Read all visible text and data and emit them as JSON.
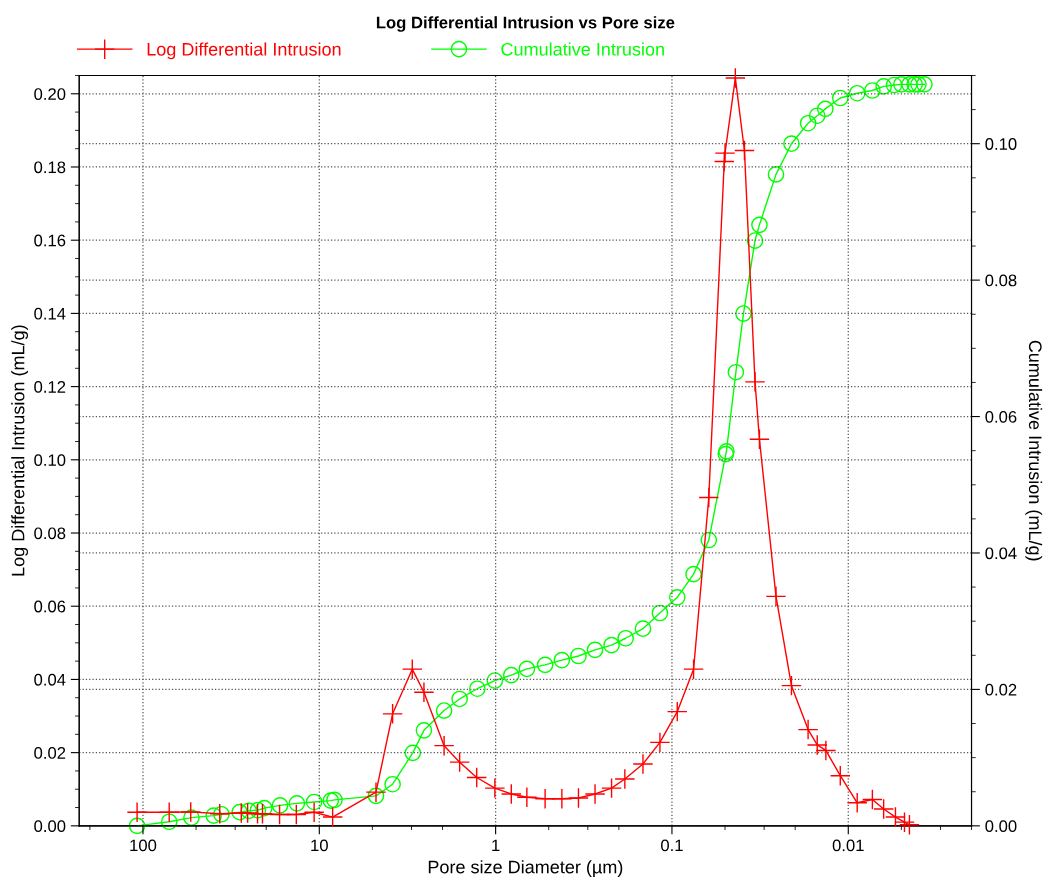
{
  "chart_data": {
    "type": "line",
    "title": "Log Differential Intrusion vs Pore size",
    "xlabel": "Pore size Diameter (µm)",
    "ylabel": "Log Differential Intrusion (mL/g)",
    "y2label": "Cumulative Intrusion (mL/g)",
    "log": "x",
    "grid": true,
    "legend": "top left",
    "line_style": "solid",
    "xlim": [
      230,
      0.002
    ],
    "xticks": [
      100,
      10,
      1,
      0.1,
      0.01
    ],
    "ylim": [
      0,
      0.205
    ],
    "yticks": [
      {
        "value": 0,
        "label": "0.00"
      },
      {
        "value": 0.02,
        "label": "0.02"
      },
      {
        "value": 0.04,
        "label": "0.04"
      },
      {
        "value": 0.06,
        "label": "0.06"
      },
      {
        "value": 0.08,
        "label": "0.08"
      },
      {
        "value": 0.1,
        "label": "0.10"
      },
      {
        "value": 0.12,
        "label": "0.12"
      },
      {
        "value": 0.14,
        "label": "0.14"
      },
      {
        "value": 0.16,
        "label": "0.16"
      },
      {
        "value": 0.18,
        "label": "0.18"
      },
      {
        "value": 0.2,
        "label": "0.20"
      }
    ],
    "y2lim": [
      0,
      0.11
    ],
    "y2ticks": [
      {
        "value": 0,
        "label": "0.00"
      },
      {
        "value": 0.02,
        "label": "0.02"
      },
      {
        "value": 0.04,
        "label": "0.04"
      },
      {
        "value": 0.06,
        "label": "0.06"
      },
      {
        "value": 0.08,
        "label": "0.08"
      },
      {
        "value": 0.1,
        "label": "0.10"
      }
    ],
    "series": [
      {
        "name": "Log Differential Intrusion",
        "color": "#ff0000",
        "marker": "cross",
        "x": [
          108,
          71,
          53.6,
          36.7,
          27.7,
          25.5,
          22.4,
          21.0,
          16.8,
          13.5,
          10.7,
          8.4,
          4.77,
          3.84,
          2.97,
          2.55,
          1.96,
          1.6,
          1.28,
          1.01,
          0.815,
          0.665,
          0.524,
          0.421,
          0.339,
          0.273,
          0.22,
          0.185,
          0.146,
          0.117,
          0.0933,
          0.0754,
          0.0618,
          0.0505,
          0.05,
          0.0437,
          0.0388,
          0.0338,
          0.0319,
          0.0257,
          0.021,
          0.0169,
          0.015,
          0.0134,
          0.0111,
          0.0089,
          0.0073,
          0.0063,
          0.0054,
          0.0048,
          0.0045
        ],
        "values": [
          0.0037,
          0.0037,
          0.0038,
          0.0033,
          0.0035,
          0.0035,
          0.0033,
          0.0033,
          0.0031,
          0.0031,
          0.0037,
          0.0024,
          0.0092,
          0.0306,
          0.0428,
          0.0365,
          0.0219,
          0.0174,
          0.0132,
          0.0103,
          0.0087,
          0.0078,
          0.0074,
          0.0074,
          0.0076,
          0.0087,
          0.0103,
          0.0128,
          0.0169,
          0.0228,
          0.0312,
          0.0428,
          0.0897,
          0.1815,
          0.1838,
          0.2043,
          0.1845,
          0.1213,
          0.1056,
          0.0627,
          0.0383,
          0.0263,
          0.0221,
          0.0206,
          0.0137,
          0.0063,
          0.0072,
          0.0046,
          0.0024,
          0.001,
          0.0003
        ]
      },
      {
        "name": "Cumulative Intrusion",
        "color": "#00ff00",
        "marker": "circle",
        "axis": "y2",
        "x": [
          108,
          71,
          53.1,
          39.7,
          35.9,
          28.3,
          25.1,
          22.3,
          20.5,
          16.7,
          13.4,
          10.7,
          8.6,
          8.2,
          4.77,
          3.84,
          2.95,
          2.55,
          1.96,
          1.6,
          1.27,
          1.01,
          0.815,
          0.665,
          0.524,
          0.421,
          0.339,
          0.273,
          0.22,
          0.183,
          0.146,
          0.117,
          0.0933,
          0.0754,
          0.0618,
          0.0495,
          0.0491,
          0.0434,
          0.0393,
          0.0338,
          0.0319,
          0.0257,
          0.021,
          0.0169,
          0.015,
          0.0135,
          0.0111,
          0.0089,
          0.0073,
          0.0063,
          0.0055,
          0.005,
          0.0045,
          0.0042,
          0.004,
          0.0037
        ],
        "values": [
          0,
          0.0006,
          0.0012,
          0.0015,
          0.0017,
          0.002,
          0.0022,
          0.0023,
          0.0026,
          0.003,
          0.0033,
          0.0035,
          0.0037,
          0.0038,
          0.0044,
          0.0061,
          0.0107,
          0.014,
          0.0169,
          0.0186,
          0.0201,
          0.0213,
          0.0221,
          0.023,
          0.0236,
          0.0243,
          0.0249,
          0.0258,
          0.0265,
          0.0275,
          0.0289,
          0.0312,
          0.0335,
          0.0369,
          0.0419,
          0.0545,
          0.0549,
          0.0665,
          0.0751,
          0.0858,
          0.0881,
          0.0955,
          0.1,
          0.103,
          0.1041,
          0.1051,
          0.1067,
          0.1074,
          0.1078,
          0.1084,
          0.1086,
          0.1087,
          0.1087,
          0.1087,
          0.1087,
          0.1087
        ]
      }
    ]
  }
}
